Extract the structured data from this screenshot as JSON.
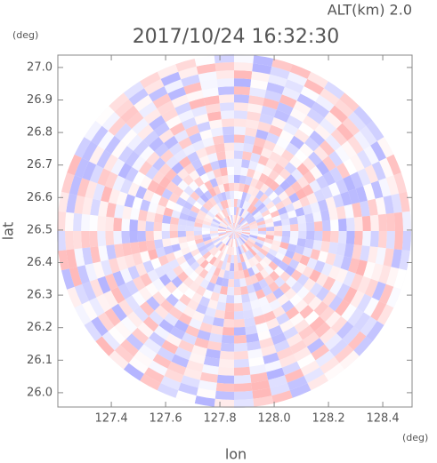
{
  "chart_data": {
    "type": "radar-ppi",
    "title": "2017/10/24 16:32:30",
    "subtitle": "ALT(km) 2.0",
    "x_label": "lon",
    "y_label": "lat",
    "x_unit": "(deg)",
    "y_unit": "(deg)",
    "xlim": [
      127.203,
      128.508
    ],
    "ylim": [
      25.956,
      27.038
    ],
    "xticks": [
      127.4,
      127.6,
      127.8,
      {
        "value": 128,
        "label": "128.0"
      },
      128.2,
      128.4
    ],
    "yticks": [
      {
        "value": 26,
        "label": "26.0"
      },
      26.1,
      26.2,
      26.3,
      26.4,
      26.5,
      26.6,
      26.7,
      26.8,
      26.9,
      {
        "value": 27,
        "label": "27.0"
      }
    ]
  }
}
